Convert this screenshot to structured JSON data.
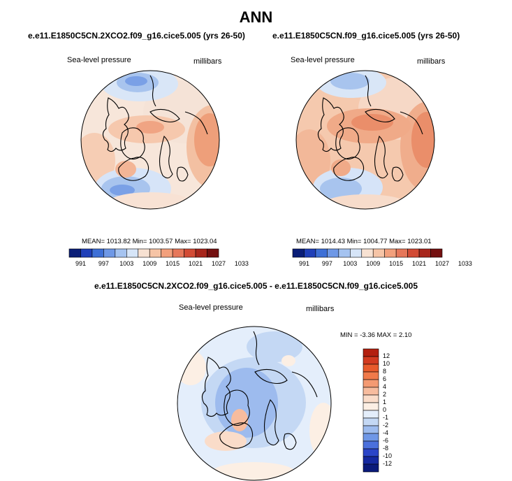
{
  "figure": {
    "title": "ANN"
  },
  "panels": [
    {
      "case": "e.e11.E1850C5CN.2XCO2.f09_g16.cice5.005 (yrs 26-50)",
      "variable": "Sea-level pressure",
      "units": "millibars",
      "stats": "MEAN= 1013.82  Min= 1003.57  Max= 1023.04"
    },
    {
      "case": "e.e11.E1850C5CN.f09_g16.cice5.005 (yrs 26-50)",
      "variable": "Sea-level pressure",
      "units": "millibars",
      "stats": "MEAN= 1014.43  Min= 1004.77  Max= 1023.01"
    }
  ],
  "diff": {
    "title": "e.e11.E1850C5CN.2XCO2.f09_g16.cice5.005 - e.e11.E1850C5CN.f09_g16.cice5.005",
    "variable": "Sea-level pressure",
    "units": "millibars",
    "stats": "MIN =  -3.36 MAX =   2.10"
  },
  "colorbar_main": {
    "ticks": [
      "991",
      "997",
      "1003",
      "1009",
      "1015",
      "1021",
      "1027",
      "1033"
    ],
    "colors": [
      "#0a1e78",
      "#1f3fb8",
      "#3d6fd6",
      "#6e98e6",
      "#a5c3f0",
      "#d6e5f8",
      "#f7e1d2",
      "#f6c4a6",
      "#f2a07c",
      "#e6775a",
      "#d24b35",
      "#a8261c",
      "#741010"
    ]
  },
  "colorbar_diff": {
    "ticks": [
      "12",
      "10",
      "8",
      "6",
      "4",
      "2",
      "1",
      "0",
      "-1",
      "-2",
      "-4",
      "-6",
      "-8",
      "-10",
      "-12"
    ],
    "colors": [
      "#b3200f",
      "#d23a1f",
      "#e85a2b",
      "#f07a4a",
      "#f49a72",
      "#f7bc9e",
      "#fadcc9",
      "#fcefe4",
      "#e4eefb",
      "#c4d8f4",
      "#9dbbee",
      "#6f97e6",
      "#4b70dc",
      "#2b45c8",
      "#1529a0",
      "#0a1a7a"
    ]
  }
}
